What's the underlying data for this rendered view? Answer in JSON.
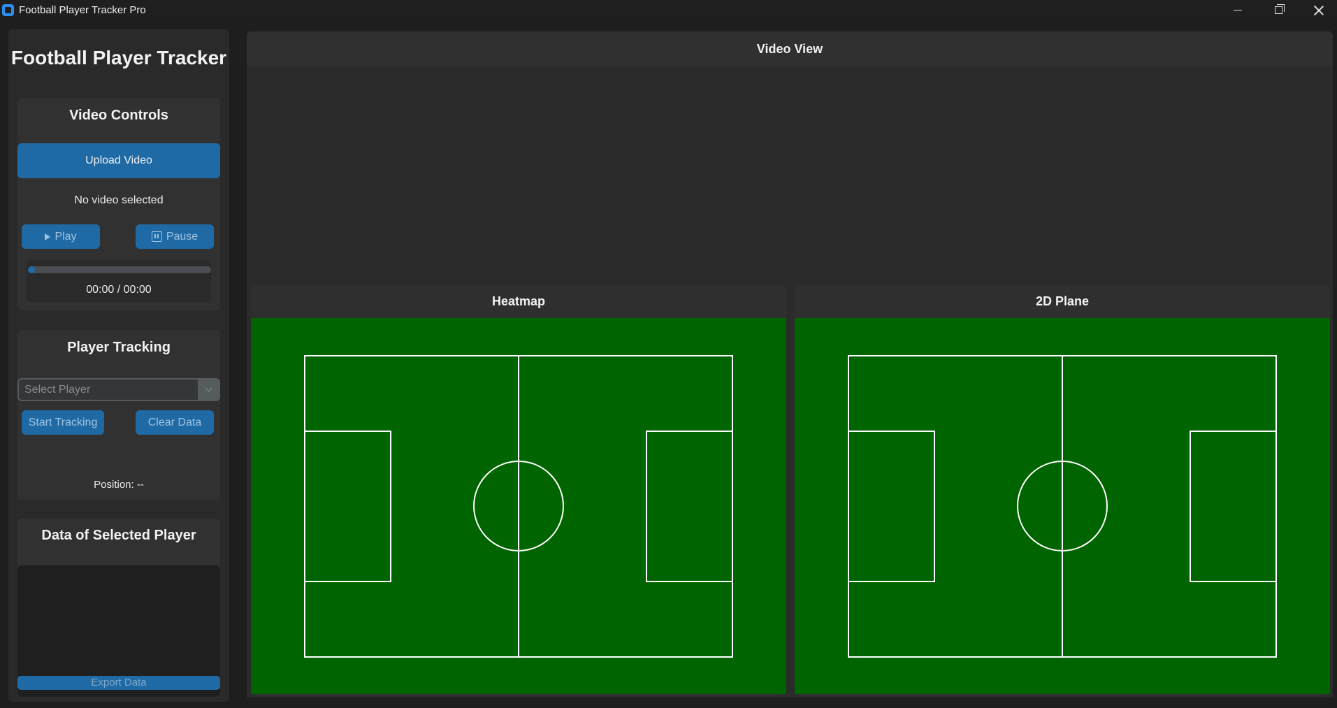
{
  "window": {
    "title": "Football Player Tracker Pro"
  },
  "sidebar": {
    "heading": "Football Player Tracker",
    "video_controls": {
      "title": "Video Controls",
      "upload_label": "Upload Video",
      "status": "No video selected",
      "play_label": "Play",
      "pause_label": "Pause",
      "progress_fraction": 0.03,
      "time": "00:00 / 00:00"
    },
    "player_tracking": {
      "title": "Player Tracking",
      "select_placeholder": "Select Player",
      "start_label": "Start Tracking",
      "clear_label": "Clear Data",
      "position": "Position: --"
    },
    "player_data": {
      "title": "Data of Selected Player",
      "export_label": "Export Data"
    }
  },
  "main": {
    "video_view_title": "Video View",
    "heatmap_title": "Heatmap",
    "plane_title": "2D Plane"
  },
  "colors": {
    "accent": "#1f6aa5",
    "field_green": "#006400",
    "background": "#1e1e1e"
  }
}
